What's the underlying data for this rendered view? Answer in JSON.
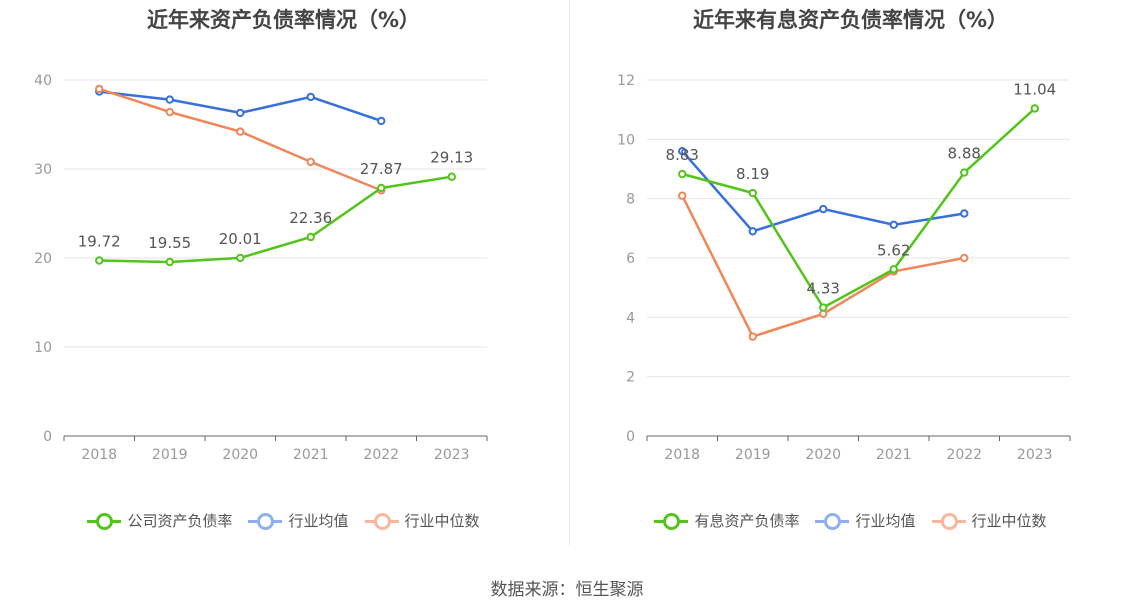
{
  "colors": {
    "green": "#52c41a",
    "blue": "#3570db",
    "orange": "#f0875a",
    "grid": "#e6e6e6",
    "axis": "#666666"
  },
  "source": "数据来源：恒生聚源",
  "charts": [
    {
      "title": "近年来资产负债率情况（%）",
      "legend": [
        "公司资产负债率",
        "行业均值",
        "行业中位数"
      ]
    },
    {
      "title": "近年来有息资产负债率情况（%）",
      "legend": [
        "有息资产负债率",
        "行业均值",
        "行业中位数"
      ]
    }
  ],
  "chart_data": [
    {
      "type": "line",
      "title": "近年来资产负债率情况（%）",
      "categories": [
        "2018",
        "2019",
        "2020",
        "2021",
        "2022",
        "2023"
      ],
      "ylim": [
        0,
        40
      ],
      "yticks": [
        0,
        10,
        20,
        30,
        40
      ],
      "grid": true,
      "legend_position": "bottom",
      "series": [
        {
          "name": "公司资产负债率",
          "color": "#52c41a",
          "values": [
            19.72,
            19.55,
            20.01,
            22.36,
            27.87,
            29.13
          ],
          "labels": [
            "19.72",
            "19.55",
            "20.01",
            "22.36",
            "27.87",
            "29.13"
          ]
        },
        {
          "name": "行业均值",
          "color": "#3570db",
          "values": [
            38.7,
            37.8,
            36.3,
            38.1,
            35.4,
            null
          ]
        },
        {
          "name": "行业中位数",
          "color": "#f0875a",
          "values": [
            39.0,
            36.4,
            34.2,
            30.8,
            27.6,
            null
          ]
        }
      ]
    },
    {
      "type": "line",
      "title": "近年来有息资产负债率情况（%）",
      "categories": [
        "2018",
        "2019",
        "2020",
        "2021",
        "2022",
        "2023"
      ],
      "ylim": [
        0,
        12
      ],
      "yticks": [
        0,
        2,
        4,
        6,
        8,
        10,
        12
      ],
      "grid": true,
      "legend_position": "bottom",
      "series": [
        {
          "name": "有息资产负债率",
          "color": "#52c41a",
          "values": [
            8.83,
            8.19,
            4.33,
            5.62,
            8.88,
            11.04
          ],
          "labels": [
            "8.83",
            "8.19",
            "4.33",
            "5.62",
            "8.88",
            "11.04"
          ]
        },
        {
          "name": "行业均值",
          "color": "#3570db",
          "values": [
            9.6,
            6.9,
            7.65,
            7.12,
            7.5,
            null
          ]
        },
        {
          "name": "行业中位数",
          "color": "#f0875a",
          "values": [
            8.1,
            3.35,
            4.12,
            5.55,
            6.0,
            null
          ]
        }
      ]
    }
  ]
}
